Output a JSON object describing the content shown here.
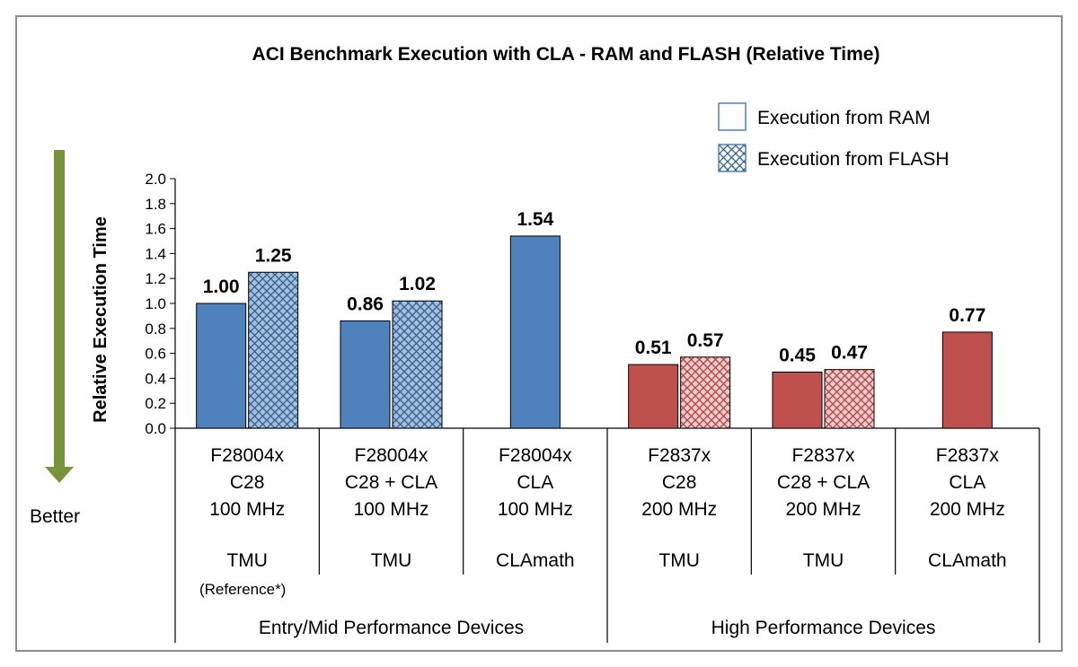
{
  "chart_data": {
    "type": "bar",
    "title": "ACI Benchmark Execution with CLA - RAM and FLASH (Relative Time)",
    "ylabel": "Relative Execution Time",
    "ylim": [
      0,
      2.0
    ],
    "yticks": [
      "0.0",
      "0.2",
      "0.4",
      "0.6",
      "0.8",
      "1.0",
      "1.2",
      "1.4",
      "1.6",
      "1.8",
      "2.0"
    ],
    "legend_position": "top-right",
    "series": [
      {
        "name": "Execution from RAM",
        "pattern": "solid"
      },
      {
        "name": "Execution from FLASH",
        "pattern": "crosshatch"
      }
    ],
    "categories": [
      {
        "lines": [
          "F28004x",
          "C28",
          "100 MHz"
        ],
        "library": "TMU",
        "note": "(Reference*)",
        "ram": 1.0,
        "ram_label": "1.00",
        "flash": 1.25,
        "flash_label": "1.25",
        "family": "entry"
      },
      {
        "lines": [
          "F28004x",
          "C28 + CLA",
          "100 MHz"
        ],
        "library": "TMU",
        "note": "",
        "ram": 0.86,
        "ram_label": "0.86",
        "flash": 1.02,
        "flash_label": "1.02",
        "family": "entry"
      },
      {
        "lines": [
          "F28004x",
          "CLA",
          "100 MHz"
        ],
        "library": "CLAmath",
        "note": "",
        "ram": 1.54,
        "ram_label": "1.54",
        "flash": null,
        "flash_label": "",
        "family": "entry"
      },
      {
        "lines": [
          "F2837x",
          "C28",
          "200 MHz"
        ],
        "library": "TMU",
        "note": "",
        "ram": 0.51,
        "ram_label": "0.51",
        "flash": 0.57,
        "flash_label": "0.57",
        "family": "high"
      },
      {
        "lines": [
          "F2837x",
          "C28 + CLA",
          "200 MHz"
        ],
        "library": "TMU",
        "note": "",
        "ram": 0.45,
        "ram_label": "0.45",
        "flash": 0.47,
        "flash_label": "0.47",
        "family": "high"
      },
      {
        "lines": [
          "F2837x",
          "CLA",
          "200 MHz"
        ],
        "library": "CLAmath",
        "note": "",
        "ram": 0.77,
        "ram_label": "0.77",
        "flash": null,
        "flash_label": "",
        "family": "high"
      }
    ],
    "groups": [
      {
        "label": "Entry/Mid Performance Devices",
        "span": [
          0,
          2
        ]
      },
      {
        "label": "High Performance Devices",
        "span": [
          3,
          5
        ]
      }
    ],
    "arrow_label": "Better",
    "colors": {
      "entry_ram": "#4f81bd",
      "entry_flash_bg": "#a7bedd",
      "entry_flash_hatch": "#2f5f8f",
      "high_ram": "#c0504d",
      "high_flash_bg": "#f3caca",
      "high_flash_hatch": "#a94442",
      "arrow": "#77933c",
      "axis": "#000000"
    }
  }
}
